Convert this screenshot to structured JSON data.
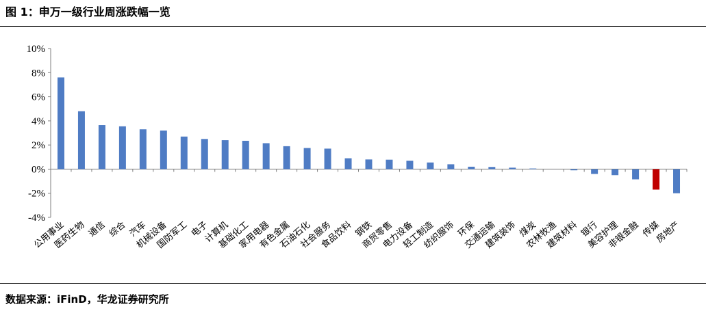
{
  "figure_label": "图 1：",
  "header_title": "申万一级行业周涨跌幅一览",
  "source_text": "数据来源：iFinD，华龙证券研究所",
  "colors": {
    "bar_default": "#4F7CC4",
    "bar_highlight": "#C00000",
    "axis": "#7f7f7f"
  },
  "chart_data": {
    "type": "bar",
    "title": "",
    "xlabel": "",
    "ylabel": "",
    "ylim": [
      -4,
      10
    ],
    "y_ticks": [
      "10%",
      "8%",
      "6%",
      "4%",
      "2%",
      "0%",
      "-2%",
      "-4%"
    ],
    "y_tick_values": [
      10,
      8,
      6,
      4,
      2,
      0,
      -2,
      -4
    ],
    "grid": false,
    "legend": "none",
    "highlight_category": "传媒",
    "categories": [
      "公用事业",
      "医药生物",
      "通信",
      "综合",
      "汽车",
      "机械设备",
      "国防军工",
      "电子",
      "计算机",
      "基础化工",
      "家用电器",
      "有色金属",
      "石油石化",
      "社会服务",
      "食品饮料",
      "钢铁",
      "商贸零售",
      "电力设备",
      "轻工制造",
      "纺织服饰",
      "环保",
      "交通运输",
      "建筑装饰",
      "煤炭",
      "农林牧渔",
      "建筑材料",
      "银行",
      "美容护理",
      "非银金融",
      "传媒",
      "房地产"
    ],
    "values": [
      7.6,
      4.8,
      3.65,
      3.55,
      3.3,
      3.2,
      2.7,
      2.5,
      2.4,
      2.35,
      2.15,
      1.9,
      1.75,
      1.7,
      0.9,
      0.8,
      0.78,
      0.7,
      0.55,
      0.4,
      0.2,
      0.18,
      0.12,
      0.05,
      0.0,
      -0.1,
      -0.4,
      -0.5,
      -0.85,
      -1.7,
      -2.0
    ]
  }
}
